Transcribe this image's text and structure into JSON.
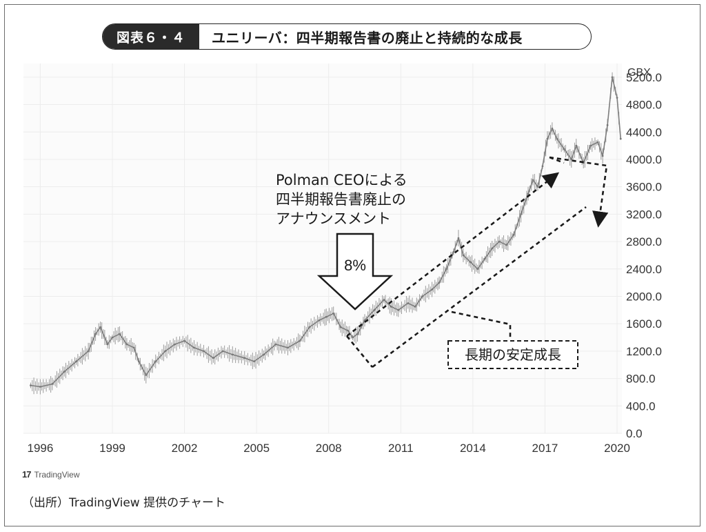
{
  "figure": {
    "label": "図表６・４",
    "title": "ユニリーバ：四半期報告書の廃止と持続的な成長"
  },
  "source_note": "（出所）TradingView 提供のチャート",
  "logo_text": "TradingView",
  "annotations": {
    "announcement_lines": [
      "Polman CEOによる",
      "四半期報告書廃止の",
      "アナウンスメント"
    ],
    "arrow_label": "8%",
    "trend_label": "長期の安定成長"
  },
  "chart_data": {
    "type": "line",
    "title": "",
    "xlabel": "",
    "ylabel": "",
    "y_unit": "GBX",
    "ylim": [
      0,
      5400
    ],
    "y_ticks": [
      0,
      400,
      800,
      1200,
      1600,
      2000,
      2400,
      2800,
      3200,
      3600,
      4000,
      4400,
      4800,
      5200
    ],
    "y_tick_labels": [
      "0.0",
      "400.0",
      "800.0",
      "1200.0",
      "1600.0",
      "2000.0",
      "2400.0",
      "2800.0",
      "3200.0",
      "3600.0",
      "4000.0",
      "4400.0",
      "4800.0",
      "5200.0"
    ],
    "xlim": [
      1995.3,
      2020.2
    ],
    "x_ticks": [
      1996,
      1999,
      2002,
      2005,
      2008,
      2011,
      2014,
      2017,
      2020
    ],
    "x_tick_labels": [
      "1996",
      "1999",
      "2002",
      "2005",
      "2008",
      "2011",
      "2014",
      "2017",
      "2020"
    ],
    "grid": true,
    "series": [
      {
        "x": [
          1995.6,
          1996.0,
          1996.5,
          1997.0,
          1997.5,
          1998.0,
          1998.3,
          1998.5,
          1998.8,
          1999.0,
          1999.3,
          1999.6,
          1999.9,
          2000.1,
          2000.4,
          2000.8,
          2001.2,
          2001.6,
          2002.0,
          2002.4,
          2002.8,
          2003.2,
          2003.6,
          2004.0,
          2004.5,
          2004.9,
          2005.3,
          2005.8,
          2006.3,
          2006.8,
          2007.2,
          2007.6,
          2007.9,
          2008.2,
          2008.5,
          2008.8,
          2009.0,
          2009.2,
          2009.5,
          2009.9,
          2010.3,
          2010.6,
          2010.9,
          2011.3,
          2011.6,
          2011.9,
          2012.3,
          2012.6,
          2012.9,
          2013.2,
          2013.4,
          2013.6,
          2013.9,
          2014.2,
          2014.5,
          2014.8,
          2015.1,
          2015.4,
          2015.7,
          2016.0,
          2016.3,
          2016.5,
          2016.7,
          2016.9,
          2017.1,
          2017.3,
          2017.5,
          2017.8,
          2018.1,
          2018.3,
          2018.6,
          2018.9,
          2019.2,
          2019.4,
          2019.6,
          2019.8,
          2020.0,
          2020.15
        ],
        "values": [
          700,
          680,
          720,
          900,
          1050,
          1200,
          1450,
          1550,
          1300,
          1400,
          1450,
          1300,
          1250,
          1050,
          850,
          1050,
          1200,
          1300,
          1350,
          1250,
          1200,
          1100,
          1200,
          1150,
          1100,
          1050,
          1150,
          1300,
          1250,
          1350,
          1550,
          1650,
          1700,
          1750,
          1550,
          1500,
          1400,
          1450,
          1650,
          1800,
          1950,
          1850,
          1800,
          1900,
          1850,
          2000,
          2100,
          2200,
          2400,
          2650,
          2850,
          2600,
          2500,
          2400,
          2550,
          2700,
          2800,
          2750,
          2900,
          3200,
          3500,
          3700,
          3600,
          3900,
          4300,
          4450,
          4300,
          4150,
          4000,
          4200,
          3950,
          4200,
          4250,
          4050,
          4500,
          5200,
          4900,
          4300
        ]
      }
    ]
  }
}
